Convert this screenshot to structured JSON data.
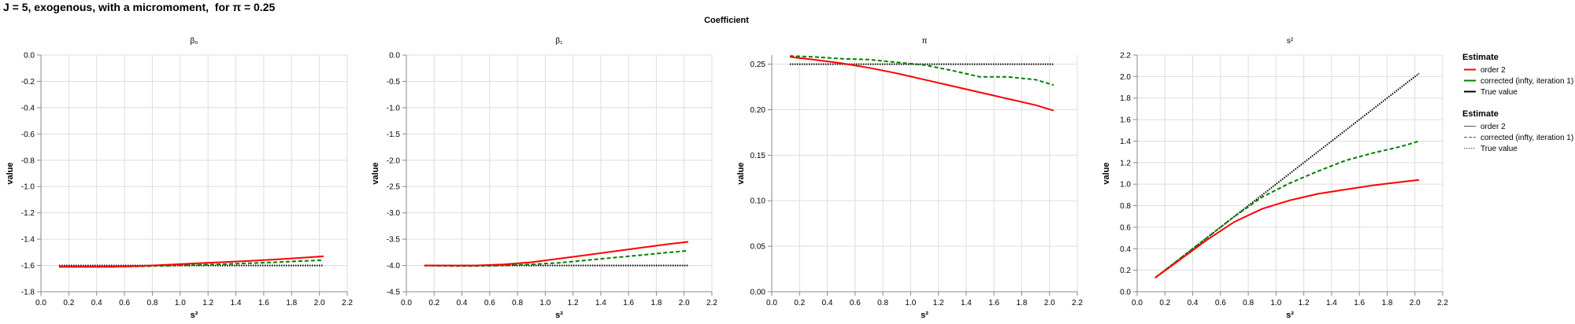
{
  "title": "J = 5, exogenous, with a micromoment,  for π = 0.25",
  "column_header": "Coefficient",
  "colors": {
    "order2": "#ff0000",
    "corrected": "#008000",
    "true_value": "#000000",
    "grid": "#dddddd",
    "axis": "#888888"
  },
  "chart_data": [
    {
      "type": "line",
      "title": "β₀",
      "xlabel": "s²",
      "ylabel": "value",
      "xlim": [
        0.0,
        2.2
      ],
      "ylim": [
        -1.8,
        0.0
      ],
      "xticks": [
        0.0,
        0.2,
        0.4,
        0.6,
        0.8,
        1.0,
        1.2,
        1.4,
        1.6,
        1.8,
        2.0,
        2.2
      ],
      "yticks": [
        -1.8,
        -1.6,
        -1.4,
        -1.2,
        -1.0,
        -0.8,
        -0.6,
        -0.4,
        -0.2,
        0.0
      ],
      "x": [
        0.13,
        0.3,
        0.5,
        0.7,
        0.9,
        1.1,
        1.3,
        1.5,
        1.7,
        1.9,
        2.03
      ],
      "series": [
        {
          "name": "order 2",
          "values": [
            -1.61,
            -1.61,
            -1.61,
            -1.605,
            -1.595,
            -1.585,
            -1.575,
            -1.565,
            -1.553,
            -1.54,
            -1.53
          ]
        },
        {
          "name": "corrected (infty, iteration 1)",
          "values": [
            -1.61,
            -1.61,
            -1.61,
            -1.607,
            -1.602,
            -1.597,
            -1.59,
            -1.583,
            -1.575,
            -1.565,
            -1.56
          ]
        },
        {
          "name": "True value",
          "values": [
            -1.6,
            -1.6,
            -1.6,
            -1.6,
            -1.6,
            -1.6,
            -1.6,
            -1.6,
            -1.6,
            -1.6,
            -1.6
          ]
        }
      ]
    },
    {
      "type": "line",
      "title": "β₁",
      "xlabel": "s²",
      "ylabel": "value",
      "xlim": [
        0.0,
        2.2
      ],
      "ylim": [
        -4.5,
        0.0
      ],
      "xticks": [
        0.0,
        0.2,
        0.4,
        0.6,
        0.8,
        1.0,
        1.2,
        1.4,
        1.6,
        1.8,
        2.0,
        2.2
      ],
      "yticks": [
        -4.5,
        -4.0,
        -3.5,
        -3.0,
        -2.5,
        -2.0,
        -1.5,
        -1.0,
        -0.5,
        0.0
      ],
      "x": [
        0.13,
        0.3,
        0.5,
        0.7,
        0.9,
        1.1,
        1.3,
        1.5,
        1.7,
        1.9,
        2.03
      ],
      "series": [
        {
          "name": "order 2",
          "values": [
            -4.0,
            -4.0,
            -4.0,
            -3.98,
            -3.94,
            -3.87,
            -3.8,
            -3.73,
            -3.66,
            -3.59,
            -3.55
          ]
        },
        {
          "name": "corrected (infty, iteration 1)",
          "values": [
            -4.0,
            -4.01,
            -4.01,
            -4.0,
            -3.98,
            -3.95,
            -3.9,
            -3.85,
            -3.8,
            -3.75,
            -3.72
          ]
        },
        {
          "name": "True value",
          "values": [
            -4.0,
            -4.0,
            -4.0,
            -4.0,
            -4.0,
            -4.0,
            -4.0,
            -4.0,
            -4.0,
            -4.0,
            -4.0
          ]
        }
      ]
    },
    {
      "type": "line",
      "title": "π",
      "xlabel": "s²",
      "ylabel": "value",
      "xlim": [
        0.0,
        2.2
      ],
      "ylim": [
        0.0,
        0.26
      ],
      "xticks": [
        0.0,
        0.2,
        0.4,
        0.6,
        0.8,
        1.0,
        1.2,
        1.4,
        1.6,
        1.8,
        2.0,
        2.2
      ],
      "yticks": [
        0.0,
        0.05,
        0.1,
        0.15,
        0.2,
        0.25
      ],
      "x": [
        0.13,
        0.3,
        0.5,
        0.7,
        0.9,
        1.1,
        1.3,
        1.5,
        1.7,
        1.9,
        2.03
      ],
      "series": [
        {
          "name": "order 2",
          "values": [
            0.258,
            0.255,
            0.251,
            0.246,
            0.24,
            0.233,
            0.226,
            0.219,
            0.212,
            0.205,
            0.199
          ]
        },
        {
          "name": "corrected (infty, iteration 1)",
          "values": [
            0.259,
            0.258,
            0.256,
            0.255,
            0.252,
            0.249,
            0.243,
            0.236,
            0.236,
            0.233,
            0.227
          ]
        },
        {
          "name": "True value",
          "values": [
            0.25,
            0.25,
            0.25,
            0.25,
            0.25,
            0.25,
            0.25,
            0.25,
            0.25,
            0.25,
            0.25
          ]
        }
      ]
    },
    {
      "type": "line",
      "title": "s²",
      "xlabel": "s²",
      "ylabel": "value",
      "xlim": [
        0.0,
        2.2
      ],
      "ylim": [
        0.0,
        2.2
      ],
      "xticks": [
        0.0,
        0.2,
        0.4,
        0.6,
        0.8,
        1.0,
        1.2,
        1.4,
        1.6,
        1.8,
        2.0,
        2.2
      ],
      "yticks": [
        0.0,
        0.2,
        0.4,
        0.6,
        0.8,
        1.0,
        1.2,
        1.4,
        1.6,
        1.8,
        2.0,
        2.2
      ],
      "x": [
        0.13,
        0.3,
        0.5,
        0.7,
        0.9,
        1.1,
        1.3,
        1.5,
        1.7,
        1.9,
        2.03
      ],
      "series": [
        {
          "name": "order 2",
          "values": [
            0.13,
            0.29,
            0.48,
            0.65,
            0.77,
            0.85,
            0.91,
            0.95,
            0.99,
            1.02,
            1.04
          ]
        },
        {
          "name": "corrected (infty, iteration 1)",
          "values": [
            0.13,
            0.3,
            0.5,
            0.7,
            0.88,
            1.01,
            1.12,
            1.22,
            1.29,
            1.35,
            1.4
          ]
        },
        {
          "name": "True value",
          "values": [
            0.13,
            0.3,
            0.5,
            0.7,
            0.9,
            1.1,
            1.3,
            1.5,
            1.7,
            1.9,
            2.03
          ]
        }
      ]
    }
  ],
  "legends": [
    {
      "title": "Estimate",
      "kind": "color",
      "items": [
        {
          "label": "order 2",
          "color": "#ff0000"
        },
        {
          "label": "corrected (infty, iteration 1)",
          "color": "#008000"
        },
        {
          "label": "True value",
          "color": "#000000"
        }
      ]
    },
    {
      "title": "Estimate",
      "kind": "dash",
      "items": [
        {
          "label": "order 2",
          "dash": "solid"
        },
        {
          "label": "corrected (infty, iteration 1)",
          "dash": "dashed"
        },
        {
          "label": "True value",
          "dash": "dotted"
        }
      ]
    }
  ]
}
